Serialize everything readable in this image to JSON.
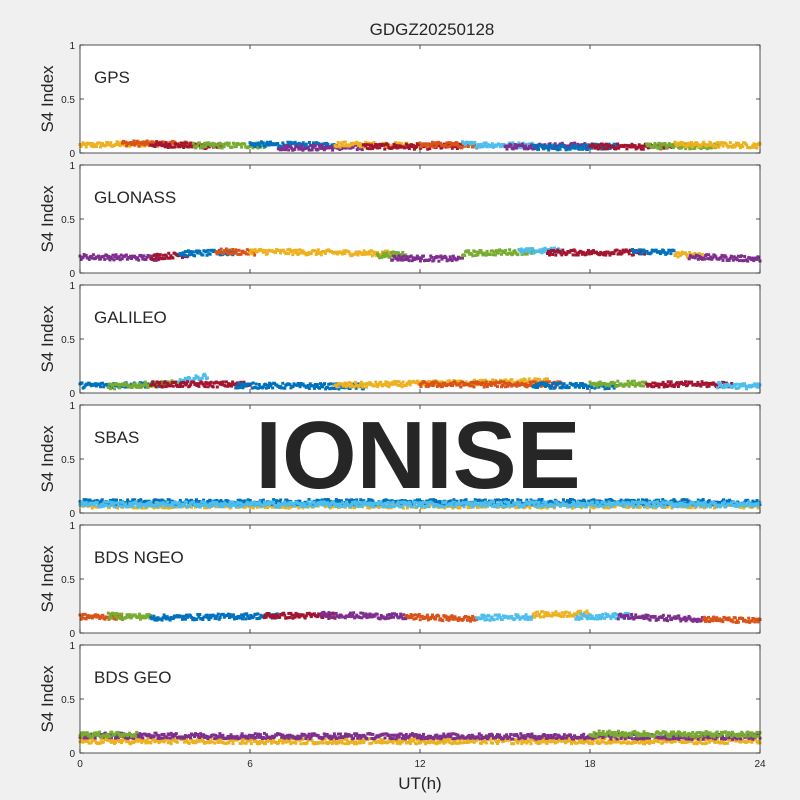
{
  "figure": {
    "title": "GDGZ20250128",
    "xlabel": "UT(h)",
    "watermark": "IONISE"
  },
  "colors": {
    "background": "#f0f0f0",
    "axes_face": "#ffffff",
    "axes_edge": "#262626",
    "watermark": "#e6e6e6",
    "series": [
      "#0072BD",
      "#D95319",
      "#EDB120",
      "#7E2F8E",
      "#77AC30",
      "#4DBEEE",
      "#A2142F"
    ]
  },
  "chart_data": [
    {
      "type": "scatter",
      "label": "GPS",
      "ylabel": "S4 Index",
      "xlim": [
        0,
        24
      ],
      "ylim": [
        0,
        1
      ],
      "xticks": [
        0,
        6,
        12,
        18,
        24
      ],
      "yticks": [
        0,
        0.5,
        1
      ],
      "ytick_labels": [
        "0",
        "0.5",
        "1"
      ],
      "show_xtick_labels": false,
      "segments": [
        {
          "color_index": 2,
          "x": [
            0,
            2.5
          ],
          "y": [
            0.07,
            0.09
          ]
        },
        {
          "color_index": 1,
          "x": [
            1.5,
            4
          ],
          "y": [
            0.09,
            0.08
          ]
        },
        {
          "color_index": 6,
          "x": [
            2.5,
            5
          ],
          "y": [
            0.08,
            0.06
          ]
        },
        {
          "color_index": 4,
          "x": [
            4,
            6.5
          ],
          "y": [
            0.07,
            0.07
          ]
        },
        {
          "color_index": 0,
          "x": [
            6,
            9
          ],
          "y": [
            0.08,
            0.07
          ]
        },
        {
          "color_index": 3,
          "x": [
            7,
            10
          ],
          "y": [
            0.05,
            0.05
          ]
        },
        {
          "color_index": 2,
          "x": [
            9,
            12
          ],
          "y": [
            0.08,
            0.07
          ]
        },
        {
          "color_index": 6,
          "x": [
            10,
            13.5
          ],
          "y": [
            0.06,
            0.06
          ]
        },
        {
          "color_index": 1,
          "x": [
            12,
            14
          ],
          "y": [
            0.08,
            0.07
          ]
        },
        {
          "color_index": 5,
          "x": [
            13.5,
            16
          ],
          "y": [
            0.08,
            0.07
          ]
        },
        {
          "color_index": 3,
          "x": [
            15,
            18
          ],
          "y": [
            0.06,
            0.07
          ]
        },
        {
          "color_index": 0,
          "x": [
            16,
            19
          ],
          "y": [
            0.05,
            0.06
          ]
        },
        {
          "color_index": 6,
          "x": [
            18,
            21
          ],
          "y": [
            0.06,
            0.06
          ]
        },
        {
          "color_index": 4,
          "x": [
            20,
            22.5
          ],
          "y": [
            0.07,
            0.06
          ]
        },
        {
          "color_index": 2,
          "x": [
            21,
            24
          ],
          "y": [
            0.08,
            0.07
          ]
        }
      ]
    },
    {
      "type": "scatter",
      "label": "GLONASS",
      "ylabel": "S4 Index",
      "xlim": [
        0,
        24
      ],
      "ylim": [
        0,
        1
      ],
      "xticks": [
        0,
        6,
        12,
        18,
        24
      ],
      "yticks": [
        0,
        0.5,
        1
      ],
      "ytick_labels": [
        "0",
        "0.5",
        "1"
      ],
      "show_xtick_labels": false,
      "segments": [
        {
          "color_index": 3,
          "x": [
            0,
            2.8
          ],
          "y": [
            0.15,
            0.14
          ]
        },
        {
          "color_index": 6,
          "x": [
            2.5,
            3.8
          ],
          "y": [
            0.15,
            0.17
          ]
        },
        {
          "color_index": 0,
          "x": [
            3.5,
            5.5
          ],
          "y": [
            0.18,
            0.19
          ]
        },
        {
          "color_index": 1,
          "x": [
            4.8,
            6.2
          ],
          "y": [
            0.2,
            0.19
          ]
        },
        {
          "color_index": 2,
          "x": [
            6,
            11
          ],
          "y": [
            0.2,
            0.18
          ]
        },
        {
          "color_index": 4,
          "x": [
            10.5,
            11.5
          ],
          "y": [
            0.16,
            0.18
          ]
        },
        {
          "color_index": 3,
          "x": [
            11,
            13.5
          ],
          "y": [
            0.14,
            0.13
          ]
        },
        {
          "color_index": 4,
          "x": [
            13.5,
            16
          ],
          "y": [
            0.18,
            0.2
          ]
        },
        {
          "color_index": 5,
          "x": [
            15.5,
            17
          ],
          "y": [
            0.2,
            0.21
          ]
        },
        {
          "color_index": 6,
          "x": [
            16.5,
            20
          ],
          "y": [
            0.19,
            0.19
          ]
        },
        {
          "color_index": 0,
          "x": [
            19.5,
            21
          ],
          "y": [
            0.2,
            0.19
          ]
        },
        {
          "color_index": 2,
          "x": [
            21,
            22
          ],
          "y": [
            0.17,
            0.17
          ]
        },
        {
          "color_index": 3,
          "x": [
            21.5,
            24
          ],
          "y": [
            0.15,
            0.13
          ]
        }
      ]
    },
    {
      "type": "scatter",
      "label": "GALILEO",
      "ylabel": "S4 Index",
      "xlim": [
        0,
        24
      ],
      "ylim": [
        0,
        1
      ],
      "xticks": [
        0,
        6,
        12,
        18,
        24
      ],
      "yticks": [
        0,
        0.5,
        1
      ],
      "ytick_labels": [
        "0",
        "0.5",
        "1"
      ],
      "show_xtick_labels": false,
      "segments": [
        {
          "color_index": 0,
          "x": [
            0,
            3
          ],
          "y": [
            0.07,
            0.08
          ]
        },
        {
          "color_index": 4,
          "x": [
            1,
            3.5
          ],
          "y": [
            0.06,
            0.09
          ]
        },
        {
          "color_index": 5,
          "x": [
            3.5,
            4.5
          ],
          "y": [
            0.1,
            0.16
          ]
        },
        {
          "color_index": 6,
          "x": [
            2.5,
            6
          ],
          "y": [
            0.08,
            0.08
          ]
        },
        {
          "color_index": 0,
          "x": [
            5.5,
            10
          ],
          "y": [
            0.07,
            0.06
          ]
        },
        {
          "color_index": 2,
          "x": [
            9,
            16.5
          ],
          "y": [
            0.07,
            0.11
          ]
        },
        {
          "color_index": 1,
          "x": [
            12,
            17
          ],
          "y": [
            0.08,
            0.08
          ]
        },
        {
          "color_index": 0,
          "x": [
            16,
            19
          ],
          "y": [
            0.07,
            0.06
          ]
        },
        {
          "color_index": 4,
          "x": [
            18,
            20
          ],
          "y": [
            0.08,
            0.09
          ]
        },
        {
          "color_index": 6,
          "x": [
            20,
            23
          ],
          "y": [
            0.08,
            0.08
          ]
        },
        {
          "color_index": 5,
          "x": [
            22.5,
            24
          ],
          "y": [
            0.07,
            0.06
          ]
        }
      ]
    },
    {
      "type": "scatter",
      "label": "SBAS",
      "ylabel": "S4 Index",
      "xlim": [
        0,
        24
      ],
      "ylim": [
        0,
        1
      ],
      "xticks": [
        0,
        6,
        12,
        18,
        24
      ],
      "yticks": [
        0,
        0.5,
        1
      ],
      "ytick_labels": [
        "0",
        "0.5",
        "1"
      ],
      "show_xtick_labels": false,
      "segments": [
        {
          "color_index": 2,
          "x": [
            0,
            24
          ],
          "y": [
            0.07,
            0.07
          ]
        },
        {
          "color_index": 0,
          "x": [
            0,
            24
          ],
          "y": [
            0.1,
            0.1
          ]
        },
        {
          "color_index": 5,
          "x": [
            0,
            24
          ],
          "y": [
            0.08,
            0.08
          ]
        }
      ]
    },
    {
      "type": "scatter",
      "label": "BDS NGEO",
      "ylabel": "S4 Index",
      "xlim": [
        0,
        24
      ],
      "ylim": [
        0,
        1
      ],
      "xticks": [
        0,
        6,
        12,
        18,
        24
      ],
      "yticks": [
        0,
        0.5,
        1
      ],
      "ytick_labels": [
        "0",
        "0.5",
        "1"
      ],
      "show_xtick_labels": false,
      "segments": [
        {
          "color_index": 1,
          "x": [
            0,
            1.5
          ],
          "y": [
            0.15,
            0.15
          ]
        },
        {
          "color_index": 4,
          "x": [
            1,
            2.5
          ],
          "y": [
            0.16,
            0.15
          ]
        },
        {
          "color_index": 0,
          "x": [
            2.5,
            7
          ],
          "y": [
            0.14,
            0.16
          ]
        },
        {
          "color_index": 6,
          "x": [
            6.5,
            9
          ],
          "y": [
            0.16,
            0.16
          ]
        },
        {
          "color_index": 3,
          "x": [
            8.5,
            11.5
          ],
          "y": [
            0.17,
            0.15
          ]
        },
        {
          "color_index": 1,
          "x": [
            11.5,
            14
          ],
          "y": [
            0.15,
            0.13
          ]
        },
        {
          "color_index": 5,
          "x": [
            14,
            16
          ],
          "y": [
            0.14,
            0.15
          ]
        },
        {
          "color_index": 2,
          "x": [
            16,
            18
          ],
          "y": [
            0.17,
            0.18
          ]
        },
        {
          "color_index": 5,
          "x": [
            17.5,
            19.5
          ],
          "y": [
            0.15,
            0.16
          ]
        },
        {
          "color_index": 3,
          "x": [
            19,
            22
          ],
          "y": [
            0.15,
            0.13
          ]
        },
        {
          "color_index": 1,
          "x": [
            22,
            24
          ],
          "y": [
            0.13,
            0.11
          ]
        }
      ]
    },
    {
      "type": "scatter",
      "label": "BDS GEO",
      "ylabel": "S4 Index",
      "xlim": [
        0,
        24
      ],
      "ylim": [
        0,
        1
      ],
      "xticks": [
        0,
        6,
        12,
        18,
        24
      ],
      "yticks": [
        0,
        0.5,
        1
      ],
      "ytick_labels": [
        "0",
        "0.5",
        "1"
      ],
      "show_xtick_labels": true,
      "xtick_labels": [
        "0",
        "6",
        "12",
        "18",
        "24"
      ],
      "segments": [
        {
          "color_index": 2,
          "x": [
            0,
            24
          ],
          "y": [
            0.11,
            0.11
          ]
        },
        {
          "color_index": 3,
          "x": [
            0,
            24
          ],
          "y": [
            0.16,
            0.15
          ]
        },
        {
          "color_index": 4,
          "x": [
            0,
            2
          ],
          "y": [
            0.17,
            0.17
          ]
        },
        {
          "color_index": 4,
          "x": [
            18,
            24
          ],
          "y": [
            0.18,
            0.17
          ]
        }
      ]
    }
  ]
}
